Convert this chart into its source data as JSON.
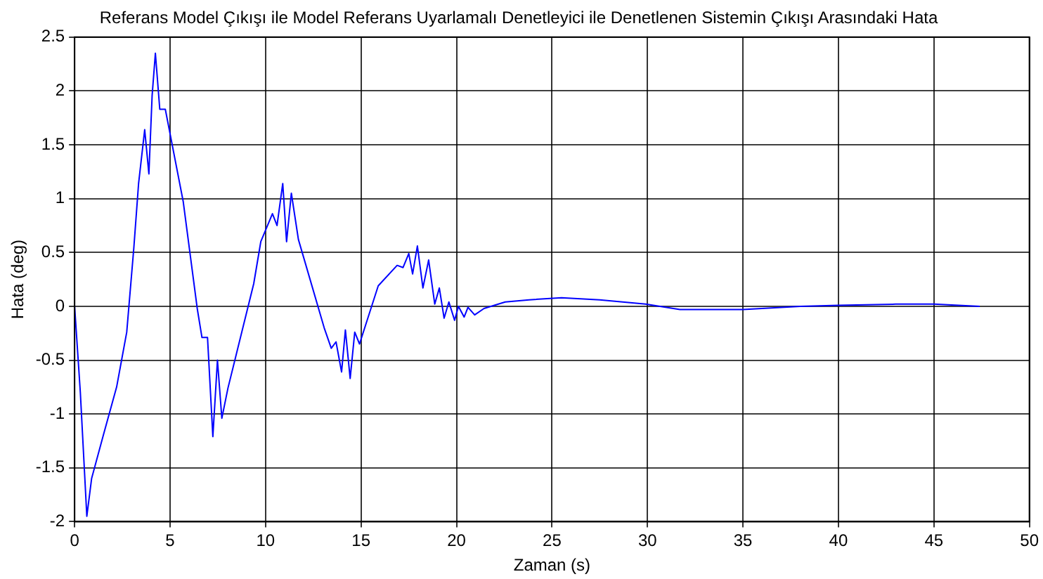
{
  "chart_data": {
    "type": "line",
    "title": "Referans Model Çıkışı ile Model Referans Uyarlamalı Denetleyici ile Denetlenen Sistemin Çıkışı Arasındaki Hata",
    "xlabel": "Zaman (s)",
    "ylabel": "Hata (deg)",
    "x": [
      0,
      0.3,
      0.64,
      0.89,
      1.5,
      2.2,
      2.73,
      3.1,
      3.35,
      3.67,
      3.89,
      4.06,
      4.23,
      4.46,
      4.75,
      5.69,
      6.43,
      6.67,
      6.96,
      7.24,
      7.48,
      7.71,
      8.03,
      9.38,
      9.75,
      10.36,
      10.6,
      10.9,
      11.1,
      11.35,
      11.72,
      13.07,
      13.44,
      13.69,
      13.98,
      14.18,
      14.43,
      14.67,
      14.92,
      15.9,
      16.89,
      17.2,
      17.5,
      17.7,
      17.95,
      18.24,
      18.54,
      18.86,
      19.1,
      19.35,
      19.6,
      19.9,
      20.1,
      20.4,
      20.6,
      20.95,
      21.44,
      22.55,
      23.8,
      25.5,
      27.5,
      29.9,
      31.7,
      35,
      38,
      40,
      43,
      45,
      47.4
    ],
    "series": [
      {
        "color": "#0000ff",
        "values": [
          0,
          -0.8,
          -1.95,
          -1.6,
          -1.2,
          -0.75,
          -0.24,
          0.54,
          1.14,
          1.64,
          1.23,
          1.96,
          2.35,
          1.83,
          1.83,
          0.97,
          -0.03,
          -0.29,
          -0.29,
          -1.21,
          -0.5,
          -1.04,
          -0.76,
          0.21,
          0.6,
          0.86,
          0.75,
          1.14,
          0.6,
          1.05,
          0.62,
          -0.2,
          -0.39,
          -0.33,
          -0.61,
          -0.22,
          -0.67,
          -0.24,
          -0.35,
          0.19,
          0.38,
          0.36,
          0.49,
          0.3,
          0.56,
          0.17,
          0.43,
          0.02,
          0.17,
          -0.11,
          0.04,
          -0.13,
          0,
          -0.1,
          -0.01,
          -0.08,
          -0.02,
          0.04,
          0.06,
          0.08,
          0.06,
          0.02,
          -0.03,
          -0.03,
          0,
          0.01,
          0.02,
          0.02,
          0
        ]
      }
    ],
    "xlim": [
      0,
      50
    ],
    "xticks": [
      0,
      5,
      10,
      15,
      20,
      25,
      30,
      35,
      40,
      45,
      50
    ],
    "ylim": [
      -2,
      2.5
    ],
    "yticks": [
      -2,
      -1.5,
      -1,
      -0.5,
      0,
      0.5,
      1,
      1.5,
      2,
      2.5
    ],
    "grid": true,
    "line_style": "solid",
    "marker": "none"
  }
}
